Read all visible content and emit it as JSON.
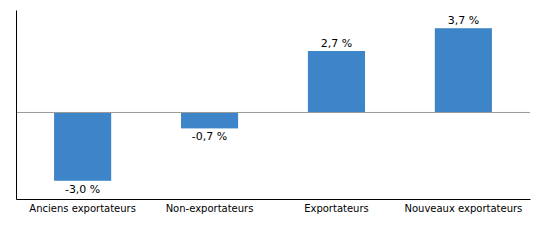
{
  "chart_data": {
    "type": "bar",
    "categories": [
      "Anciens exportateurs",
      "Non-exportateurs",
      "Exportateurs",
      "Nouveaux exportateurs"
    ],
    "values": [
      -3.0,
      -0.7,
      2.7,
      3.7
    ],
    "value_labels": [
      "-3,0 %",
      "-0,7 %",
      "2,7 %",
      "3,7 %"
    ],
    "color": "#3d85c8",
    "ylim": [
      -3.8,
      4.5
    ],
    "data_labels": true,
    "tick_labels": "x",
    "grid": false
  }
}
